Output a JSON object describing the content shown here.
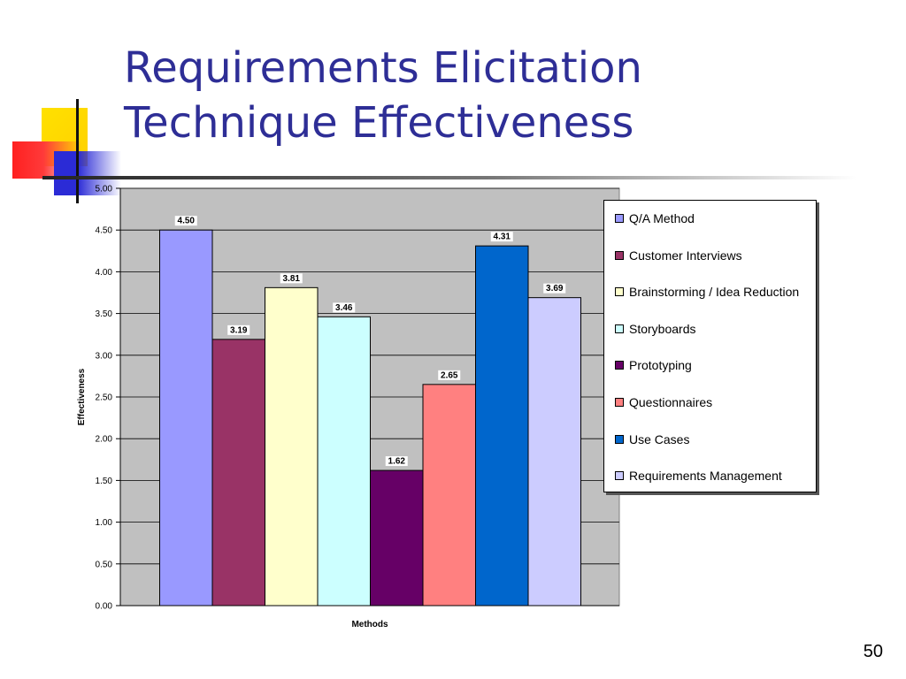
{
  "slide": {
    "title_line1": "Requirements Elicitation",
    "title_line2": "Technique Effectiveness",
    "page_number": "50"
  },
  "colors": {
    "title": "#2e2e96",
    "plot_background": "#c0c0c0"
  },
  "chart_data": {
    "type": "bar",
    "xlabel": "Methods",
    "ylabel": "Effectiveness",
    "ylim": [
      0,
      5
    ],
    "yticks": [
      "0.00",
      "0.50",
      "1.00",
      "1.50",
      "2.00",
      "2.50",
      "3.00",
      "3.50",
      "4.00",
      "4.50",
      "5.00"
    ],
    "grid": true,
    "legend_position": "right",
    "series": [
      {
        "name": "Q/A Method",
        "value": 4.5,
        "label": "4.50",
        "color": "#9999ff"
      },
      {
        "name": "Customer Interviews",
        "value": 3.19,
        "label": "3.19",
        "color": "#993366"
      },
      {
        "name": "Brainstorming / Idea Reduction",
        "value": 3.81,
        "label": "3.81",
        "color": "#ffffcc"
      },
      {
        "name": "Storyboards",
        "value": 3.46,
        "label": "3.46",
        "color": "#ccffff"
      },
      {
        "name": "Prototyping",
        "value": 1.62,
        "label": "1.62",
        "color": "#660066"
      },
      {
        "name": "Questionnaires",
        "value": 2.65,
        "label": "2.65",
        "color": "#ff8080"
      },
      {
        "name": "Use Cases",
        "value": 4.31,
        "label": "4.31",
        "color": "#0066cc"
      },
      {
        "name": "Requirements Management",
        "value": 3.69,
        "label": "3.69",
        "color": "#ccccff"
      }
    ]
  }
}
